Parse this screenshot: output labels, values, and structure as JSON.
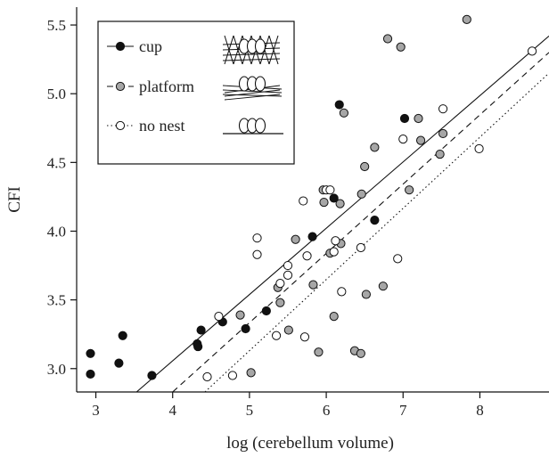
{
  "chart_data": {
    "type": "scatter",
    "xlabel": "log (cerebellum volume)",
    "ylabel": "CFI",
    "xlim": [
      2.75,
      8.9
    ],
    "ylim": [
      2.83,
      5.63
    ],
    "xticks": [
      3,
      4,
      5,
      6,
      7,
      8
    ],
    "yticks": [
      3.0,
      3.5,
      4.0,
      4.5,
      5.0,
      5.5
    ],
    "xtick_labels": [
      "3",
      "4",
      "5",
      "6",
      "7",
      "8"
    ],
    "ytick_labels": [
      "3.0",
      "3.5",
      "4.0",
      "4.5",
      "5.0",
      "5.5"
    ],
    "grid": false,
    "legend_position": "top-left",
    "series": [
      {
        "name": "cup",
        "marker": "filled-circle",
        "line_style": "solid",
        "fill_color": "#111111",
        "fit_line": [
          [
            3.53,
            2.83
          ],
          [
            8.9,
            5.42
          ]
        ],
        "points": [
          [
            2.93,
            3.11
          ],
          [
            2.93,
            2.96
          ],
          [
            3.3,
            3.04
          ],
          [
            3.35,
            3.24
          ],
          [
            3.73,
            2.95
          ],
          [
            4.32,
            3.18
          ],
          [
            4.33,
            3.16
          ],
          [
            4.37,
            3.28
          ],
          [
            4.65,
            3.34
          ],
          [
            4.95,
            3.29
          ],
          [
            5.22,
            3.42
          ],
          [
            5.82,
            3.96
          ],
          [
            6.1,
            4.24
          ],
          [
            6.17,
            4.92
          ],
          [
            6.63,
            4.08
          ],
          [
            7.02,
            4.82
          ]
        ]
      },
      {
        "name": "platform",
        "marker": "grey-circle",
        "line_style": "dashed",
        "fill_color": "#a6a6a6",
        "fit_line": [
          [
            4.0,
            2.83
          ],
          [
            8.9,
            5.3
          ]
        ],
        "points": [
          [
            4.88,
            3.39
          ],
          [
            5.02,
            2.97
          ],
          [
            5.37,
            3.59
          ],
          [
            5.4,
            3.48
          ],
          [
            5.51,
            3.28
          ],
          [
            5.6,
            3.94
          ],
          [
            5.83,
            3.61
          ],
          [
            5.9,
            3.12
          ],
          [
            5.96,
            4.3
          ],
          [
            5.97,
            4.21
          ],
          [
            6.05,
            3.84
          ],
          [
            6.1,
            3.38
          ],
          [
            6.18,
            4.2
          ],
          [
            6.19,
            3.91
          ],
          [
            6.23,
            4.86
          ],
          [
            6.37,
            3.13
          ],
          [
            6.45,
            3.11
          ],
          [
            6.46,
            4.27
          ],
          [
            6.5,
            4.47
          ],
          [
            6.52,
            3.54
          ],
          [
            6.63,
            4.61
          ],
          [
            6.74,
            3.6
          ],
          [
            6.8,
            5.4
          ],
          [
            6.97,
            5.34
          ],
          [
            7.08,
            4.3
          ],
          [
            7.2,
            4.82
          ],
          [
            7.23,
            4.66
          ],
          [
            7.48,
            4.56
          ],
          [
            7.52,
            4.71
          ],
          [
            7.83,
            5.54
          ]
        ]
      },
      {
        "name": "no nest",
        "marker": "open-circle",
        "line_style": "dotted",
        "fill_color": "#ffffff",
        "fit_line": [
          [
            4.42,
            2.83
          ],
          [
            8.9,
            5.15
          ]
        ],
        "points": [
          [
            4.45,
            2.94
          ],
          [
            4.6,
            3.38
          ],
          [
            4.78,
            2.95
          ],
          [
            5.1,
            3.95
          ],
          [
            5.1,
            3.83
          ],
          [
            5.35,
            3.24
          ],
          [
            5.4,
            3.62
          ],
          [
            5.5,
            3.68
          ],
          [
            5.5,
            3.75
          ],
          [
            5.7,
            4.22
          ],
          [
            5.72,
            3.23
          ],
          [
            5.75,
            3.82
          ],
          [
            6.0,
            4.3
          ],
          [
            6.05,
            4.3
          ],
          [
            6.1,
            3.85
          ],
          [
            6.12,
            3.93
          ],
          [
            6.2,
            3.56
          ],
          [
            6.45,
            3.88
          ],
          [
            6.93,
            3.8
          ],
          [
            7.0,
            4.67
          ],
          [
            7.52,
            4.89
          ],
          [
            7.99,
            4.6
          ],
          [
            8.68,
            5.31
          ]
        ]
      }
    ]
  }
}
